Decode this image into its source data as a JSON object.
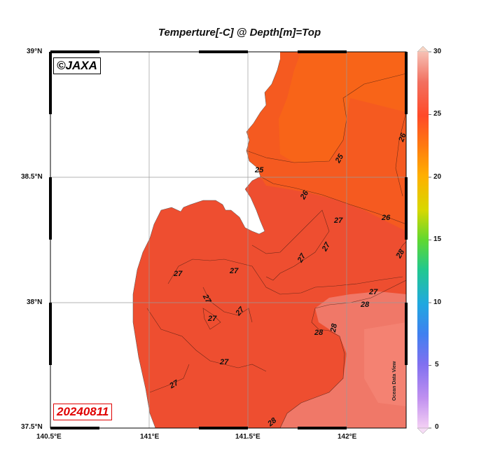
{
  "title": "Temperture[-C] @ Depth[m]=Top",
  "copyright_label": "©JAXA",
  "date_label": "20240811",
  "watermark": "Ocean Data View",
  "axes": {
    "lat_labels": [
      "39°N",
      "38.5°N",
      "38°N",
      "37.5°N"
    ],
    "lon_labels": [
      "140.5°E",
      "141°E",
      "141.5°E",
      "142°E"
    ]
  },
  "colorbar": {
    "ticks": [
      "30",
      "25",
      "20",
      "15",
      "10",
      "5",
      "0"
    ],
    "colors": [
      "#f0a8a0",
      "#ff4a2a",
      "#ff8800",
      "#f4d000",
      "#60e030",
      "#20c8a0",
      "#20a0e0",
      "#5070f0",
      "#a070f0",
      "#e8b0f0"
    ]
  },
  "contour_labels": [
    "25",
    "25",
    "26",
    "26",
    "26",
    "27",
    "27",
    "27",
    "27",
    "27",
    "27",
    "27",
    "27",
    "27",
    "27",
    "27",
    "28",
    "28",
    "28",
    "28",
    "28"
  ],
  "colors": {
    "land": "#ffffff",
    "sea_warm": "#f24a28",
    "sea_mid": "#ee5032",
    "sea_north": "#f55a20",
    "sea_28": "#f07c6c",
    "frame": "#000000"
  }
}
